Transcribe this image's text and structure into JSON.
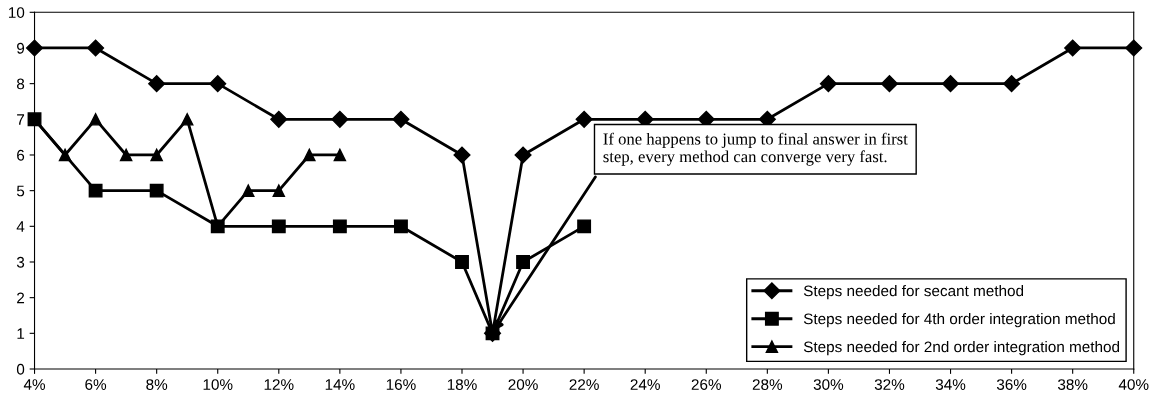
{
  "chart_data": {
    "type": "line",
    "x": [
      4,
      6,
      8,
      10,
      12,
      14,
      16,
      18,
      19,
      20,
      22,
      24,
      26,
      28,
      30,
      32,
      34,
      36,
      38,
      40
    ],
    "series": [
      {
        "name": "Steps needed for secant method",
        "color": "#000000",
        "marker": "diamond",
        "values": [
          9,
          9,
          8,
          8,
          7,
          7,
          7,
          6,
          1,
          6,
          7,
          7,
          7,
          7,
          8,
          8,
          8,
          8,
          9,
          9
        ]
      },
      {
        "name": "Steps needed for 4th order integration method",
        "color": "#000000",
        "marker": "square",
        "x": [
          4,
          6,
          8,
          10,
          12,
          14,
          16,
          18,
          19,
          20,
          22
        ],
        "values": [
          7,
          5,
          5,
          4,
          4,
          4,
          4,
          3,
          1,
          3,
          4
        ]
      },
      {
        "name": "Steps needed for 2nd order integration method",
        "color": "#000000",
        "marker": "triangle",
        "x": [
          4,
          5,
          6,
          7,
          8,
          9,
          10,
          11,
          12,
          13,
          14
        ],
        "values": [
          7,
          6,
          7,
          6,
          6,
          7,
          4,
          5,
          5,
          6,
          6
        ]
      }
    ],
    "xlim": [
      4,
      40
    ],
    "xticks": [
      {
        "value": 4,
        "label": "4%"
      },
      {
        "value": 6,
        "label": "6%"
      },
      {
        "value": 8,
        "label": "8%"
      },
      {
        "value": 10,
        "label": "10%"
      },
      {
        "value": 12,
        "label": "12%"
      },
      {
        "value": 14,
        "label": "14%"
      },
      {
        "value": 16,
        "label": "16%"
      },
      {
        "value": 18,
        "label": "18%"
      },
      {
        "value": 20,
        "label": "20%"
      },
      {
        "value": 22,
        "label": "22%"
      },
      {
        "value": 24,
        "label": "24%"
      },
      {
        "value": 26,
        "label": "26%"
      },
      {
        "value": 28,
        "label": "28%"
      },
      {
        "value": 30,
        "label": "30%"
      },
      {
        "value": 32,
        "label": "32%"
      },
      {
        "value": 34,
        "label": "34%"
      },
      {
        "value": 36,
        "label": "36%"
      },
      {
        "value": 38,
        "label": "38%"
      },
      {
        "value": 40,
        "label": "40%"
      }
    ],
    "ylim": [
      0,
      10
    ],
    "yticks": [
      0,
      1,
      2,
      3,
      4,
      5,
      6,
      7,
      8,
      9,
      10
    ],
    "grid": false,
    "legend": "bottom right",
    "line_style": "solid",
    "annotations": [
      {
        "text": "If one happens to jump to final answer in first\nstep, every method can converge very fast.",
        "x": 19,
        "y": 1
      }
    ]
  }
}
